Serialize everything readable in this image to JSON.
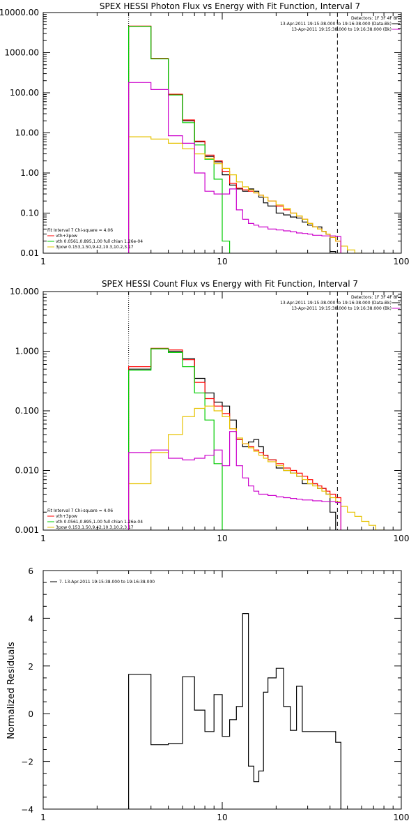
{
  "chart_data": [
    {
      "type": "line",
      "title": "SPEX HESSI Photon Flux vs Energy with Fit Function, Interval 7",
      "xlabel": "",
      "ylabel": "",
      "xscale": "log",
      "yscale": "log",
      "xlim": [
        1,
        100
      ],
      "ylim": [
        0.01,
        10000
      ],
      "x_ticks": [
        "1",
        "10",
        "100"
      ],
      "y_ticks": [
        "0.01",
        "0.10",
        "1.00",
        "10.00",
        "100.00",
        "1000.00",
        "10000.00"
      ],
      "vlines": [
        {
          "x": 3,
          "style": "dotted"
        },
        {
          "x": 44,
          "style": "dashed"
        }
      ],
      "legend_tr": [
        "Detectors: 1F 3F 4F 8F",
        "13-Apr-2011 19:15:38.000 to 19:16:38.000 (Data-Bk)",
        "13-Apr-2011 19:15:38.000 to 19:16:38.000 (Bk)"
      ],
      "legend_tr_colors": [
        "#000000",
        "#000000",
        "#cc00cc"
      ],
      "legend_bl": [
        "Fit Interval  7   Chi-square = 4.06",
        "vth+3pow",
        "vth 0.0561,0.895,1.00  full chian 1.26e-04",
        "3pow 0.153,1.50,9.42,10.3,10.2,3.17"
      ],
      "legend_bl_colors": [
        "",
        "#ff0000",
        "#00cc00",
        "#e6c200"
      ],
      "series": [
        {
          "color": "#000000",
          "edges": [
            3,
            4,
            5,
            6,
            7,
            8,
            9,
            10,
            11,
            12,
            13,
            14,
            15,
            16,
            17,
            18,
            20,
            22,
            24,
            26,
            28,
            30,
            32,
            34,
            36,
            38,
            40,
            43,
            46
          ],
          "values": [
            4500,
            700,
            90,
            20,
            6,
            2.6,
            1.9,
            0.9,
            0.5,
            0.4,
            0.35,
            0.4,
            0.35,
            0.25,
            0.18,
            0.15,
            0.1,
            0.09,
            0.08,
            0.075,
            0.06,
            0.05,
            0.045,
            0.045,
            0.035,
            0.03,
            0.011,
            0.005
          ]
        },
        {
          "color": "#ff0000",
          "edges": [
            3,
            4,
            5,
            6,
            7,
            8,
            9,
            10,
            11,
            12,
            13,
            14,
            15,
            16,
            17,
            18,
            20,
            22,
            24,
            26,
            28,
            30,
            32,
            34,
            36,
            38,
            40,
            43,
            46
          ],
          "values": [
            4600,
            720,
            92,
            21,
            6.2,
            2.8,
            2.0,
            1.1,
            0.55,
            0.42,
            0.38,
            0.35,
            0.32,
            0.28,
            0.25,
            0.2,
            0.15,
            0.12,
            0.1,
            0.085,
            0.07,
            0.055,
            0.045,
            0.04,
            0.035,
            0.03,
            0.025,
            0.02
          ]
        },
        {
          "color": "#00cc00",
          "edges": [
            3,
            4,
            5,
            6,
            7,
            8,
            9,
            10,
            11
          ],
          "values": [
            4500,
            700,
            88,
            18,
            5,
            2.2,
            0.7,
            0.02
          ]
        },
        {
          "color": "#e6c200",
          "edges": [
            3,
            4,
            5,
            6,
            7,
            8,
            9,
            10,
            11,
            12,
            13,
            14,
            15,
            16,
            17,
            18,
            20,
            22,
            24,
            26,
            28,
            30,
            32,
            34,
            36,
            38,
            40,
            43,
            46,
            50,
            55,
            60
          ],
          "values": [
            8,
            7,
            5.5,
            4,
            3,
            2.3,
            1.7,
            1.3,
            0.9,
            0.6,
            0.45,
            0.38,
            0.32,
            0.28,
            0.25,
            0.2,
            0.16,
            0.13,
            0.1,
            0.085,
            0.07,
            0.055,
            0.045,
            0.04,
            0.035,
            0.03,
            0.025,
            0.02,
            0.015,
            0.012,
            0.01
          ]
        },
        {
          "color": "#cc00cc",
          "edges": [
            3,
            4,
            5,
            6,
            7,
            8,
            9,
            10,
            11,
            12,
            13,
            14,
            15,
            16,
            17,
            18,
            20,
            22,
            24,
            26,
            28,
            30,
            32,
            34,
            36,
            38,
            40,
            43,
            46
          ],
          "values": [
            180,
            120,
            8.5,
            5.5,
            1.0,
            0.35,
            0.3,
            0.3,
            0.4,
            0.12,
            0.07,
            0.055,
            0.05,
            0.045,
            0.045,
            0.04,
            0.038,
            0.036,
            0.034,
            0.032,
            0.031,
            0.03,
            0.028,
            0.028,
            0.027,
            0.027,
            0.027,
            0.026
          ]
        }
      ]
    },
    {
      "type": "line",
      "title": "SPEX HESSI Count Flux vs Energy with Fit Function, Interval 7",
      "xlabel": "",
      "ylabel": "",
      "xscale": "log",
      "yscale": "log",
      "xlim": [
        1,
        100
      ],
      "ylim": [
        0.001,
        10
      ],
      "x_ticks": [
        "1",
        "10",
        "100"
      ],
      "y_ticks": [
        "0.001",
        "0.010",
        "0.100",
        "1.000",
        "10.000"
      ],
      "vlines": [
        {
          "x": 3,
          "style": "dotted"
        },
        {
          "x": 44,
          "style": "dashed"
        }
      ],
      "legend_tr": [
        "Detectors: 1F 3F 4F 8F",
        "13-Apr-2011 19:15:38.000 to 19:16:38.000 (Data-Bk)",
        "13-Apr-2011 19:15:38.000 to 19:16:38.000 (Bk)"
      ],
      "legend_tr_colors": [
        "#000000",
        "#000000",
        "#cc00cc"
      ],
      "legend_bl": [
        "Fit Interval  7   Chi-square = 4.06",
        "vth+3pow",
        "vth 0.0561,0.895,1.00  full chian 1.26e-04",
        "3pow 0.153,1.50,9.42,10.3,10.2,3.17"
      ],
      "legend_bl_colors": [
        "",
        "#ff0000",
        "#00cc00",
        "#e6c200"
      ],
      "series": [
        {
          "color": "#000000",
          "edges": [
            3,
            4,
            5,
            6,
            7,
            8,
            9,
            10,
            11,
            12,
            13,
            14,
            15,
            16,
            17,
            18,
            20,
            22,
            24,
            26,
            28,
            30,
            32,
            34,
            36,
            38,
            40,
            43,
            46
          ],
          "values": [
            0.5,
            1.1,
            1.0,
            0.75,
            0.35,
            0.2,
            0.14,
            0.12,
            0.07,
            0.033,
            0.025,
            0.03,
            0.033,
            0.025,
            0.018,
            0.015,
            0.011,
            0.01,
            0.009,
            0.008,
            0.006,
            0.006,
            0.006,
            0.005,
            0.005,
            0.004,
            0.002,
            0.0009
          ]
        },
        {
          "color": "#ff0000",
          "edges": [
            3,
            4,
            5,
            6,
            7,
            8,
            9,
            10,
            11,
            12,
            13,
            14,
            15,
            16,
            17,
            18,
            20,
            22,
            24,
            26,
            28,
            30,
            32,
            34,
            36,
            38,
            40,
            43,
            46
          ],
          "values": [
            0.55,
            1.12,
            1.05,
            0.72,
            0.3,
            0.16,
            0.12,
            0.09,
            0.05,
            0.033,
            0.028,
            0.025,
            0.022,
            0.02,
            0.018,
            0.015,
            0.013,
            0.011,
            0.01,
            0.009,
            0.008,
            0.007,
            0.006,
            0.0055,
            0.005,
            0.0045,
            0.004,
            0.0035
          ]
        },
        {
          "color": "#00cc00",
          "edges": [
            3,
            4,
            5,
            6,
            7,
            8,
            9,
            10,
            11
          ],
          "values": [
            0.48,
            1.1,
            0.95,
            0.55,
            0.2,
            0.07,
            0.013,
            0.001
          ]
        },
        {
          "color": "#e6c200",
          "edges": [
            3,
            4,
            5,
            6,
            7,
            8,
            9,
            10,
            11,
            12,
            13,
            14,
            15,
            16,
            17,
            18,
            20,
            22,
            24,
            26,
            28,
            30,
            32,
            34,
            36,
            38,
            40,
            43,
            46,
            50,
            55,
            60,
            66,
            72,
            80,
            88
          ],
          "values": [
            0.006,
            0.02,
            0.04,
            0.08,
            0.11,
            0.12,
            0.1,
            0.08,
            0.05,
            0.035,
            0.028,
            0.024,
            0.021,
            0.018,
            0.016,
            0.014,
            0.012,
            0.01,
            0.009,
            0.008,
            0.007,
            0.006,
            0.0055,
            0.005,
            0.0045,
            0.004,
            0.0035,
            0.003,
            0.0025,
            0.002,
            0.0017,
            0.0014,
            0.0012,
            0.001,
            0.0009
          ]
        },
        {
          "color": "#cc00cc",
          "edges": [
            3,
            4,
            5,
            6,
            7,
            8,
            9,
            10,
            11,
            12,
            13,
            14,
            15,
            16,
            17,
            18,
            20,
            22,
            24,
            26,
            28,
            30,
            32,
            34,
            36,
            38,
            40,
            43,
            46
          ],
          "values": [
            0.02,
            0.022,
            0.016,
            0.015,
            0.016,
            0.018,
            0.022,
            0.012,
            0.045,
            0.012,
            0.0075,
            0.0055,
            0.0045,
            0.004,
            0.004,
            0.0038,
            0.0036,
            0.0035,
            0.0034,
            0.0033,
            0.0032,
            0.0032,
            0.0031,
            0.0031,
            0.003,
            0.003,
            0.003,
            0.0029
          ]
        }
      ]
    },
    {
      "type": "line",
      "title": "",
      "xlabel": "",
      "ylabel": "Normalized Residuals",
      "xscale": "log",
      "yscale": "linear",
      "xlim": [
        1,
        100
      ],
      "ylim": [
        -4,
        6
      ],
      "x_ticks": [
        "1",
        "10",
        "100"
      ],
      "y_ticks": [
        "−4",
        "−2",
        "0",
        "2",
        "4",
        "6"
      ],
      "legend_tl": "7. 13-Apr-2011 19:15:38.000 to 19:16:38.000",
      "series": [
        {
          "color": "#000000",
          "edges": [
            3,
            4,
            5,
            6,
            7,
            8,
            9,
            10,
            11,
            12,
            13,
            14,
            15,
            16,
            17,
            18,
            20,
            22,
            24,
            26,
            28,
            30,
            32,
            34,
            36,
            38,
            40,
            43,
            46
          ],
          "values": [
            1.65,
            -1.3,
            -1.25,
            1.55,
            0.15,
            -0.75,
            0.8,
            -0.95,
            -0.25,
            0.3,
            4.2,
            -2.2,
            -2.85,
            -2.4,
            0.9,
            1.5,
            1.9,
            0.3,
            -0.7,
            1.15,
            -0.75,
            -0.75,
            -0.75,
            -0.75,
            -0.75,
            -0.75,
            -0.75,
            -1.2
          ]
        }
      ]
    }
  ]
}
